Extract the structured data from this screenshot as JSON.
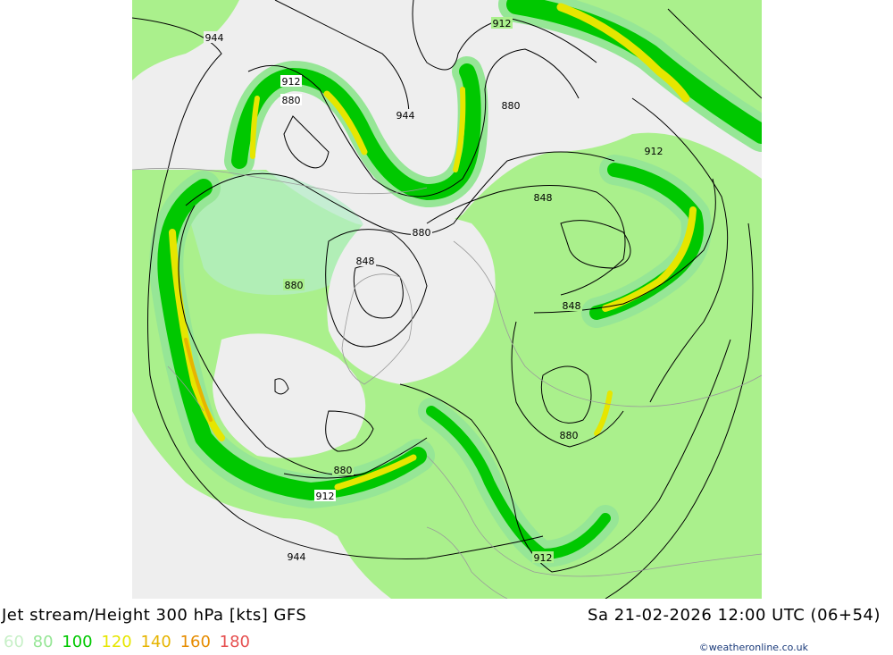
{
  "header": {
    "title": "Jet stream/Height 300 hPa [kts] GFS",
    "datetime": "Sa 21-02-2026 12:00 UTC (06+54)"
  },
  "legend": {
    "items": [
      {
        "label": "60",
        "color": "#c8f0c8"
      },
      {
        "label": "80",
        "color": "#96e696"
      },
      {
        "label": "100",
        "color": "#00c800"
      },
      {
        "label": "120",
        "color": "#e6e600"
      },
      {
        "label": "140",
        "color": "#e6b400"
      },
      {
        "label": "160",
        "color": "#e68c00"
      },
      {
        "label": "180",
        "color": "#e65050"
      }
    ]
  },
  "credit": "©weatheronline.co.uk",
  "contour_labels": [
    {
      "text": "944"
    },
    {
      "text": "912"
    },
    {
      "text": "912"
    },
    {
      "text": "880"
    },
    {
      "text": "944"
    },
    {
      "text": "880"
    },
    {
      "text": "912"
    },
    {
      "text": "848"
    },
    {
      "text": "880"
    },
    {
      "text": "848"
    },
    {
      "text": "880"
    },
    {
      "text": "848"
    },
    {
      "text": "880"
    },
    {
      "text": "880"
    },
    {
      "text": "912"
    },
    {
      "text": "944"
    },
    {
      "text": "912"
    }
  ],
  "colors": {
    "land": "#f0f0f0",
    "weak_jet": "#b4ecc8",
    "light_green": "#aaf08c",
    "green": "#00c800",
    "yellow": "#e6e600",
    "orange": "#e6b400"
  }
}
